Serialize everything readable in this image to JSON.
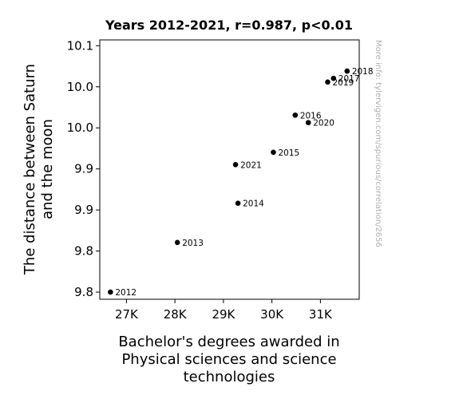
{
  "chart_data": {
    "type": "scatter",
    "title": "Years 2012-2021, r=0.987, p<0.01",
    "xlabel_lines": [
      "Bachelor's degrees awarded in",
      "Physical sciences and science",
      "technologies"
    ],
    "ylabel_lines": [
      "The distance between Saturn",
      "and the moon"
    ],
    "watermark": "More info: tylervigen.com/spurious/correlation/2656",
    "xlim": [
      26450,
      31800
    ],
    "ylim": [
      9.7788,
      10.0946
    ],
    "x_ticks": [
      {
        "value": 27000,
        "label": "27K"
      },
      {
        "value": 28000,
        "label": "28K"
      },
      {
        "value": 29000,
        "label": "29K"
      },
      {
        "value": 30000,
        "label": "30K"
      },
      {
        "value": 31000,
        "label": "31K"
      }
    ],
    "y_ticks": [
      {
        "value": 9.7875,
        "label": "9.8"
      },
      {
        "value": 9.8375,
        "label": "9.8"
      },
      {
        "value": 9.8875,
        "label": "9.9"
      },
      {
        "value": 9.9375,
        "label": "9.9"
      },
      {
        "value": 9.9875,
        "label": "10.0"
      },
      {
        "value": 10.0375,
        "label": "10.0"
      },
      {
        "value": 10.0875,
        "label": "10.1"
      }
    ],
    "points": [
      {
        "label": "2012",
        "x": 26670,
        "y": 9.7875
      },
      {
        "label": "2013",
        "x": 28050,
        "y": 9.848
      },
      {
        "label": "2014",
        "x": 29300,
        "y": 9.8957
      },
      {
        "label": "2015",
        "x": 30030,
        "y": 9.9578
      },
      {
        "label": "2016",
        "x": 30480,
        "y": 10.003
      },
      {
        "label": "2017",
        "x": 31270,
        "y": 10.0478
      },
      {
        "label": "2018",
        "x": 31550,
        "y": 10.0566
      },
      {
        "label": "2019",
        "x": 31150,
        "y": 10.0433
      },
      {
        "label": "2020",
        "x": 30750,
        "y": 9.9939
      },
      {
        "label": "2021",
        "x": 29250,
        "y": 9.9427
      }
    ]
  }
}
